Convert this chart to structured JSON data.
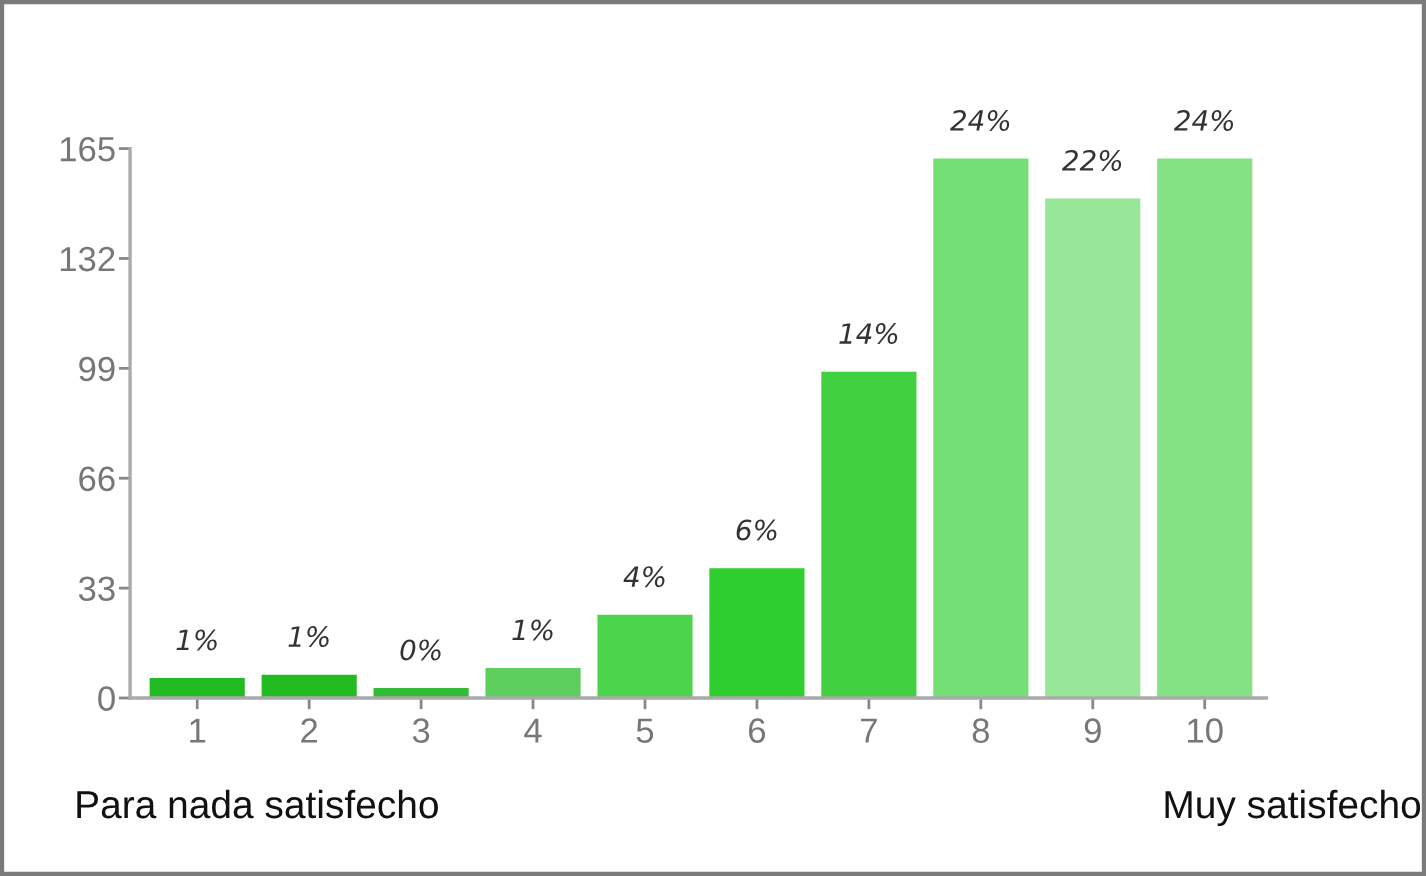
{
  "chart_data": {
    "type": "bar",
    "categories": [
      "1",
      "2",
      "3",
      "4",
      "5",
      "6",
      "7",
      "8",
      "9",
      "10"
    ],
    "values": [
      6,
      7,
      3,
      9,
      25,
      39,
      98,
      162,
      150,
      162
    ],
    "colors": [
      "#22bb22",
      "#22bb22",
      "#33bb33",
      "#5ccf5c",
      "#4cd44c",
      "#2fcf2f",
      "#40d040",
      "#74df74",
      "#98e698",
      "#84e184"
    ],
    "ylim": [
      0,
      165
    ],
    "yticks": [
      0,
      33,
      66,
      99,
      132,
      165
    ],
    "grid": false,
    "annotations": [
      {
        "text": "1%",
        "x": "1",
        "y": 6
      },
      {
        "text": "1%",
        "x": "2",
        "y": 7
      },
      {
        "text": "0%",
        "x": "3",
        "y": 3
      },
      {
        "text": "1%",
        "x": "4",
        "y": 9
      },
      {
        "text": "4%",
        "x": "5",
        "y": 25
      },
      {
        "text": "6%",
        "x": "6",
        "y": 39
      },
      {
        "text": "14%",
        "x": "7",
        "y": 98
      },
      {
        "text": "24%",
        "x": "8",
        "y": 162
      },
      {
        "text": "22%",
        "x": "9",
        "y": 150
      },
      {
        "text": "24%",
        "x": "10",
        "y": 162
      },
      "Para nada satisfecho",
      "Muy satisfecho"
    ]
  }
}
